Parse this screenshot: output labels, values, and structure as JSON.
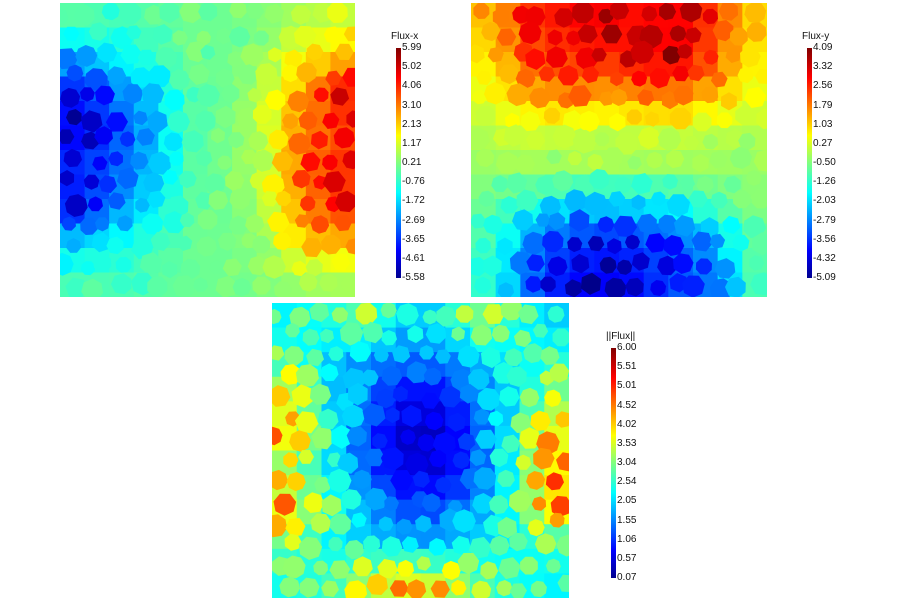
{
  "chart_data": [
    {
      "type": "heatmap",
      "title": "Flux-x",
      "colormap": "jet",
      "range": [
        -5.58,
        5.99
      ],
      "colorbar_ticks": [
        "5.99",
        "5.02",
        "4.06",
        "3.10",
        "2.13",
        "1.17",
        "0.21",
        "-0.76",
        "-1.72",
        "-2.69",
        "-3.65",
        "-4.61",
        "-5.58"
      ],
      "grid": [
        [
          -0.3,
          -0.6,
          -0.3,
          0.0,
          0.0,
          0.3,
          0.8,
          1.2
        ],
        [
          -2.5,
          -1.5,
          -0.8,
          0.0,
          0.0,
          0.5,
          2.0,
          3.0
        ],
        [
          -4.8,
          -3.5,
          -2.0,
          -0.3,
          0.0,
          1.0,
          3.0,
          5.5
        ],
        [
          -5.2,
          -4.0,
          -2.5,
          -0.4,
          0.1,
          1.2,
          3.5,
          4.5
        ],
        [
          -4.5,
          -3.8,
          -2.3,
          -0.3,
          0.1,
          1.0,
          3.8,
          5.0
        ],
        [
          -5.0,
          -3.0,
          -1.8,
          -0.2,
          0.0,
          0.8,
          3.5,
          4.8
        ],
        [
          -2.0,
          -1.5,
          -0.8,
          0.0,
          0.0,
          0.5,
          2.5,
          3.0
        ],
        [
          -0.5,
          -0.5,
          -0.3,
          0.0,
          0.0,
          0.2,
          0.6,
          0.8
        ]
      ]
    },
    {
      "type": "heatmap",
      "title": "Flux-y",
      "colormap": "jet",
      "range": [
        -5.09,
        4.09
      ],
      "colorbar_ticks": [
        "4.09",
        "3.32",
        "2.56",
        "1.79",
        "1.03",
        "0.27",
        "-0.50",
        "-1.26",
        "-2.03",
        "-2.79",
        "-3.56",
        "-4.32",
        "-5.09"
      ],
      "grid": [
        [
          1.5,
          3.0,
          3.5,
          3.8,
          3.5,
          3.8,
          3.0,
          1.2
        ],
        [
          1.0,
          2.5,
          3.0,
          3.2,
          3.5,
          3.9,
          2.8,
          1.0
        ],
        [
          0.5,
          1.5,
          2.0,
          1.8,
          2.0,
          2.2,
          1.5,
          0.5
        ],
        [
          0.0,
          0.3,
          0.2,
          0.0,
          0.2,
          0.3,
          0.1,
          0.0
        ],
        [
          -0.4,
          -0.3,
          -0.3,
          -0.2,
          -0.3,
          -0.4,
          -0.3,
          -0.4
        ],
        [
          -0.8,
          -1.5,
          -2.2,
          -2.5,
          -2.2,
          -1.8,
          -1.2,
          -0.6
        ],
        [
          -1.2,
          -3.0,
          -4.0,
          -4.5,
          -4.2,
          -3.8,
          -3.0,
          -1.0
        ],
        [
          -1.5,
          -3.5,
          -4.8,
          -5.0,
          -4.8,
          -4.0,
          -3.5,
          -1.2
        ]
      ]
    },
    {
      "type": "heatmap",
      "title": "||Flux||",
      "colormap": "jet",
      "range": [
        0.07,
        6.0
      ],
      "colorbar_ticks": [
        "6.00",
        "5.51",
        "5.01",
        "4.52",
        "4.02",
        "3.53",
        "3.04",
        "2.54",
        "2.05",
        "1.55",
        "1.06",
        "0.57",
        "0.07"
      ],
      "grid": [
        [
          2.8,
          3.0,
          3.5,
          2.5,
          2.5,
          3.8,
          3.0,
          2.5
        ],
        [
          3.2,
          2.5,
          2.0,
          1.8,
          1.8,
          2.2,
          2.8,
          3.0
        ],
        [
          4.2,
          2.5,
          1.8,
          1.0,
          1.0,
          1.8,
          2.5,
          3.8
        ],
        [
          4.8,
          2.8,
          1.5,
          0.6,
          0.5,
          1.5,
          2.8,
          4.5
        ],
        [
          3.8,
          2.8,
          1.6,
          0.8,
          0.7,
          1.5,
          3.0,
          4.8
        ],
        [
          4.8,
          3.2,
          2.2,
          1.5,
          1.4,
          2.0,
          3.0,
          5.0
        ],
        [
          3.5,
          2.8,
          2.5,
          2.2,
          2.2,
          2.5,
          2.8,
          3.2
        ],
        [
          3.0,
          3.2,
          4.0,
          4.5,
          4.3,
          3.5,
          3.0,
          2.8
        ]
      ]
    }
  ]
}
